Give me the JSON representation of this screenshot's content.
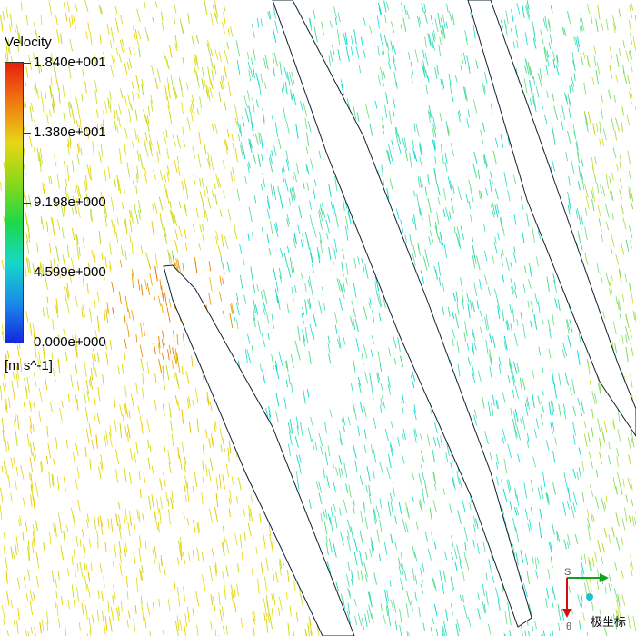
{
  "legend": {
    "title": "Velocity",
    "ticks": [
      "1.840e+001",
      "1.380e+001",
      "9.198e+000",
      "4.599e+000",
      "0.000e+000"
    ],
    "unit": "[m s^-1]"
  },
  "triad": {
    "origin_label": "S",
    "down_label": "θ",
    "caption": "极坐标"
  }
}
